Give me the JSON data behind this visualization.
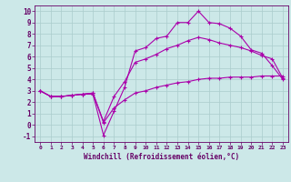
{
  "title": "",
  "xlabel": "Windchill (Refroidissement éolien,°C)",
  "ylabel": "",
  "bg_color": "#cce8e8",
  "line_color": "#aa00aa",
  "grid_color": "#aacccc",
  "xlim": [
    -0.5,
    23.5
  ],
  "ylim": [
    -1.5,
    10.5
  ],
  "xticks": [
    0,
    1,
    2,
    3,
    4,
    5,
    6,
    7,
    8,
    9,
    10,
    11,
    12,
    13,
    14,
    15,
    16,
    17,
    18,
    19,
    20,
    21,
    22,
    23
  ],
  "yticks": [
    -1,
    0,
    1,
    2,
    3,
    4,
    5,
    6,
    7,
    8,
    9,
    10
  ],
  "series": [
    {
      "x": [
        0,
        1,
        2,
        3,
        4,
        5,
        6,
        7,
        8,
        9,
        10,
        11,
        12,
        13,
        14,
        15,
        16,
        17,
        18,
        19,
        20,
        21,
        22,
        23
      ],
      "y": [
        3.0,
        2.5,
        2.5,
        2.6,
        2.7,
        2.7,
        -0.9,
        1.2,
        3.3,
        6.5,
        6.8,
        7.6,
        7.8,
        9.0,
        9.0,
        10.0,
        9.0,
        8.9,
        8.5,
        7.8,
        6.6,
        6.3,
        5.2,
        4.0
      ]
    },
    {
      "x": [
        0,
        1,
        2,
        3,
        4,
        5,
        6,
        7,
        8,
        9,
        10,
        11,
        12,
        13,
        14,
        15,
        16,
        17,
        18,
        19,
        20,
        21,
        22,
        23
      ],
      "y": [
        3.0,
        2.5,
        2.5,
        2.6,
        2.7,
        2.8,
        0.3,
        2.5,
        3.8,
        5.5,
        5.8,
        6.2,
        6.7,
        7.0,
        7.4,
        7.7,
        7.5,
        7.2,
        7.0,
        6.8,
        6.5,
        6.1,
        5.8,
        4.1
      ]
    },
    {
      "x": [
        0,
        1,
        2,
        3,
        4,
        5,
        6,
        7,
        8,
        9,
        10,
        11,
        12,
        13,
        14,
        15,
        16,
        17,
        18,
        19,
        20,
        21,
        22,
        23
      ],
      "y": [
        3.0,
        2.5,
        2.5,
        2.6,
        2.7,
        2.8,
        0.2,
        1.5,
        2.2,
        2.8,
        3.0,
        3.3,
        3.5,
        3.7,
        3.8,
        4.0,
        4.1,
        4.1,
        4.2,
        4.2,
        4.2,
        4.3,
        4.3,
        4.3
      ]
    }
  ]
}
